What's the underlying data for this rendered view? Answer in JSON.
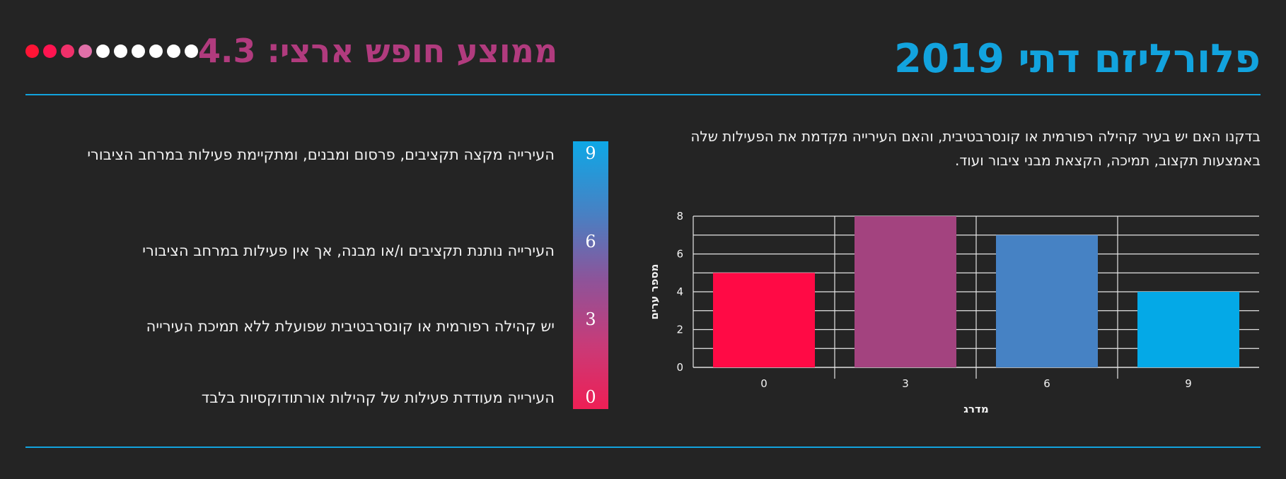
{
  "header": {
    "title": "פלורליזם דתי 2019",
    "score_label": "ממוצע חופש ארצי: 4.3",
    "dots": [
      "#ff1435",
      "#ff1450",
      "#f0306a",
      "#e070a8",
      "#ffffff",
      "#ffffff",
      "#ffffff",
      "#ffffff",
      "#ffffff",
      "#ffffff"
    ]
  },
  "description": "בדקנו האם יש בעיר קהילה רפורמית או קונסרבטיבית, והאם העירייה מקדמת את הפעילות שלה באמצעות תקצוב, תמיכה, הקצאת מבני ציבור ועוד.",
  "chart_data": {
    "type": "bar",
    "categories": [
      "0",
      "3",
      "6",
      "9"
    ],
    "values": [
      5,
      8,
      7,
      4
    ],
    "colors": [
      "#ff0a45",
      "#a3437f",
      "#4682c4",
      "#04a9e7"
    ],
    "xlabel": "מדרג",
    "ylabel": "מספר ערים",
    "ylim": [
      0,
      8
    ],
    "yticks": [
      0,
      2,
      4,
      6,
      8
    ],
    "grid": true
  },
  "scale": {
    "levels": [
      {
        "value": "9",
        "text": "העירייה מקצה תקציבים, פרסום ומבנים, ומתקיימת פעילות במרחב הציבורי"
      },
      {
        "value": "6",
        "text": "העירייה נותנת תקציבים ו/או מבנה, אך אין פעילות במרחב הציבורי"
      },
      {
        "value": "3",
        "text": "יש קהילה רפורמית או קונסרבטיבית שפועלת ללא תמיכת העירייה"
      },
      {
        "value": "0",
        "text": "העירייה מעודדת פעילות של קהילות אורתודוקסיות בלבד"
      }
    ]
  }
}
